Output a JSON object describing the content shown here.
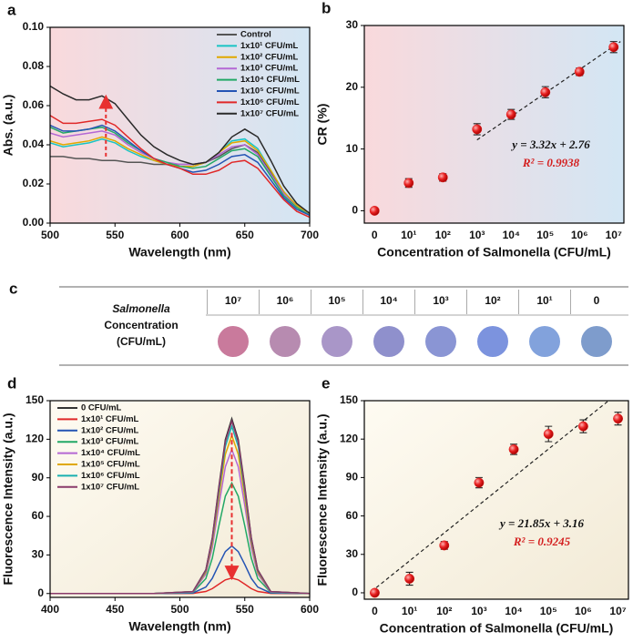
{
  "chart_data": [
    {
      "type": "line",
      "panel": "a",
      "xlabel": "Wavelength (nm)",
      "ylabel": "Abs. (a.u.)",
      "xlim": [
        500,
        700
      ],
      "xticks": [
        500,
        550,
        600,
        650,
        700
      ],
      "ylim": [
        0,
        0.1
      ],
      "yticks": [
        {
          "value": 0,
          "label": "0.00"
        },
        {
          "value": 0.02,
          "label": "0.02"
        },
        {
          "value": 0.04,
          "label": "0.04"
        },
        {
          "value": 0.06,
          "label": "0.06"
        },
        {
          "value": 0.08,
          "label": "0.08"
        },
        {
          "value": 0.1,
          "label": "0.10"
        }
      ],
      "legend": "upper right",
      "x": [
        500,
        510,
        520,
        530,
        540,
        550,
        560,
        570,
        580,
        590,
        600,
        610,
        620,
        630,
        640,
        650,
        660,
        670,
        680,
        690,
        700
      ],
      "series": [
        {
          "name": "Control",
          "color": "#555555",
          "values": [
            0.034,
            0.034,
            0.033,
            0.033,
            0.032,
            0.032,
            0.031,
            0.031,
            0.03,
            0.03,
            0.03,
            0.03,
            0.031,
            0.034,
            0.038,
            0.04,
            0.036,
            0.026,
            0.016,
            0.009,
            0.005
          ]
        },
        {
          "name": "1x10¹ CFU/mL",
          "color": "#19c4c4",
          "values": [
            0.041,
            0.039,
            0.04,
            0.041,
            0.043,
            0.041,
            0.037,
            0.034,
            0.032,
            0.03,
            0.029,
            0.029,
            0.031,
            0.036,
            0.042,
            0.043,
            0.038,
            0.027,
            0.016,
            0.009,
            0.005
          ]
        },
        {
          "name": "1x10² CFU/mL",
          "color": "#e0a800",
          "values": [
            0.042,
            0.04,
            0.041,
            0.042,
            0.044,
            0.042,
            0.038,
            0.035,
            0.032,
            0.03,
            0.029,
            0.029,
            0.031,
            0.036,
            0.041,
            0.042,
            0.037,
            0.027,
            0.016,
            0.009,
            0.005
          ]
        },
        {
          "name": "1x10³ CFU/mL",
          "color": "#b468d4",
          "values": [
            0.046,
            0.044,
            0.045,
            0.046,
            0.047,
            0.045,
            0.04,
            0.036,
            0.033,
            0.031,
            0.03,
            0.03,
            0.031,
            0.035,
            0.039,
            0.04,
            0.035,
            0.025,
            0.015,
            0.008,
            0.004
          ]
        },
        {
          "name": "1x10⁴ CFU/mL",
          "color": "#22a866",
          "values": [
            0.049,
            0.046,
            0.047,
            0.048,
            0.049,
            0.046,
            0.041,
            0.037,
            0.033,
            0.031,
            0.029,
            0.028,
            0.029,
            0.033,
            0.037,
            0.038,
            0.034,
            0.024,
            0.014,
            0.008,
            0.004
          ]
        },
        {
          "name": "1x10⁵ CFU/mL",
          "color": "#2454b4",
          "values": [
            0.05,
            0.047,
            0.047,
            0.048,
            0.05,
            0.047,
            0.042,
            0.037,
            0.033,
            0.03,
            0.028,
            0.026,
            0.027,
            0.03,
            0.034,
            0.035,
            0.031,
            0.022,
            0.013,
            0.007,
            0.004
          ]
        },
        {
          "name": "1x10⁶ CFU/mL",
          "color": "#e02828",
          "values": [
            0.055,
            0.051,
            0.051,
            0.052,
            0.053,
            0.05,
            0.044,
            0.038,
            0.033,
            0.03,
            0.028,
            0.025,
            0.025,
            0.027,
            0.031,
            0.032,
            0.028,
            0.02,
            0.012,
            0.006,
            0.003
          ]
        },
        {
          "name": "1x10⁷ CFU/mL",
          "color": "#2a2a2a",
          "values": [
            0.07,
            0.066,
            0.063,
            0.063,
            0.065,
            0.061,
            0.053,
            0.045,
            0.039,
            0.035,
            0.032,
            0.03,
            0.031,
            0.036,
            0.044,
            0.048,
            0.044,
            0.032,
            0.019,
            0.01,
            0.005
          ]
        }
      ]
    },
    {
      "type": "scatter",
      "panel": "b",
      "xlabel": "Concentration of Salmonella (CFU/mL)",
      "ylabel": "CR (%)",
      "categories": [
        "0",
        "10¹",
        "10²",
        "10³",
        "10⁴",
        "10⁵",
        "10⁶",
        "10⁷"
      ],
      "values": [
        0,
        4.5,
        5.4,
        13.2,
        15.6,
        19.2,
        22.5,
        26.5
      ],
      "errors": [
        0.3,
        0.7,
        0.6,
        0.9,
        0.8,
        0.9,
        0.6,
        0.9
      ],
      "color": "#e02020",
      "ylim": [
        -2,
        30
      ],
      "yticks": [
        0,
        10,
        20,
        30
      ],
      "equation": "y = 3.32x + 2.76",
      "r2": "R² = 0.9938"
    },
    {
      "type": "line",
      "panel": "d",
      "xlabel": "Wavelength (nm)",
      "ylabel": "Fluorescence Intensity (a.u.)",
      "xlim": [
        400,
        600
      ],
      "xticks": [
        400,
        450,
        500,
        550,
        600
      ],
      "ylim": [
        -3,
        150
      ],
      "yticks": [
        0,
        30,
        60,
        90,
        120,
        150
      ],
      "legend": "upper left",
      "x": [
        400,
        480,
        510,
        520,
        525,
        530,
        535,
        540,
        545,
        550,
        555,
        560,
        570,
        600
      ],
      "series": [
        {
          "name": "0 CFU/mL",
          "color": "#333333",
          "values": [
            0,
            0,
            1.5,
            18.4,
            43.5,
            83,
            119.7,
            136,
            119.7,
            83,
            43.5,
            18.4,
            1.5,
            0
          ]
        },
        {
          "name": "1x10¹ CFU/mL",
          "color": "#e02828",
          "values": [
            0,
            0,
            0.1,
            1.6,
            3.8,
            7.3,
            10.6,
            12,
            10.6,
            7.3,
            3.8,
            1.6,
            0.1,
            0
          ]
        },
        {
          "name": "1x10² CFU/mL",
          "color": "#2454b4",
          "values": [
            0,
            0,
            0.4,
            5,
            11.8,
            22.6,
            32.6,
            37,
            32.6,
            22.6,
            11.8,
            5,
            0.4,
            0
          ]
        },
        {
          "name": "1x10³ CFU/mL",
          "color": "#22a866",
          "values": [
            0,
            0,
            0.9,
            11.6,
            27.5,
            52.5,
            75.7,
            86,
            75.7,
            52.5,
            27.5,
            11.6,
            0.9,
            0
          ]
        },
        {
          "name": "1x10⁴ CFU/mL",
          "color": "#b468d4",
          "values": [
            0,
            0,
            1.2,
            15.1,
            35.8,
            68.3,
            98.6,
            112,
            98.6,
            68.3,
            35.8,
            15.1,
            1.2,
            0
          ]
        },
        {
          "name": "1x10⁵ CFU/mL",
          "color": "#e0a800",
          "values": [
            0,
            0,
            1.4,
            16.6,
            39.4,
            75,
            108.2,
            123,
            108.2,
            75,
            39.4,
            16.6,
            1.4,
            0
          ]
        },
        {
          "name": "1x10⁶ CFU/mL",
          "color": "#19b0b0",
          "values": [
            0,
            0,
            1.4,
            17.6,
            41.6,
            79.3,
            114.4,
            130,
            114.4,
            79.3,
            41.6,
            17.6,
            1.4,
            0
          ]
        },
        {
          "name": "1x10⁷ CFU/mL",
          "color": "#8a3a6a",
          "values": [
            0,
            0,
            1.5,
            18.1,
            42.9,
            81.7,
            117.9,
            134,
            117.9,
            81.7,
            42.9,
            18.1,
            1.5,
            0
          ]
        }
      ]
    },
    {
      "type": "scatter",
      "panel": "e",
      "xlabel": "Concentration of Salmonella (CFU/mL)",
      "ylabel": "Fluorescence Intensity (a.u.)",
      "categories": [
        "0",
        "10¹",
        "10²",
        "10³",
        "10⁴",
        "10⁵",
        "10⁶",
        "10⁷"
      ],
      "values": [
        0,
        11,
        37,
        86,
        112,
        124,
        130,
        136
      ],
      "errors": [
        1,
        5,
        3,
        4,
        4,
        6,
        5,
        5
      ],
      "color": "#e02020",
      "ylim": [
        -5,
        150
      ],
      "yticks": [
        0,
        30,
        60,
        90,
        120,
        150
      ],
      "equation": "y = 21.85x + 3.16",
      "r2": "R² = 0.9245"
    }
  ],
  "table": {
    "panel": "c",
    "row_label": [
      "Salmonella",
      "Concentration",
      "(CFU/mL)"
    ],
    "columns": [
      "10⁷",
      "10⁶",
      "10⁵",
      "10⁴",
      "10³",
      "10²",
      "10¹",
      "0"
    ],
    "colors": [
      "#c97a9c",
      "#b78bb0",
      "#a996c8",
      "#8f90cc",
      "#8a95d4",
      "#7c93de",
      "#82a2dc",
      "#7e9ccc"
    ]
  }
}
